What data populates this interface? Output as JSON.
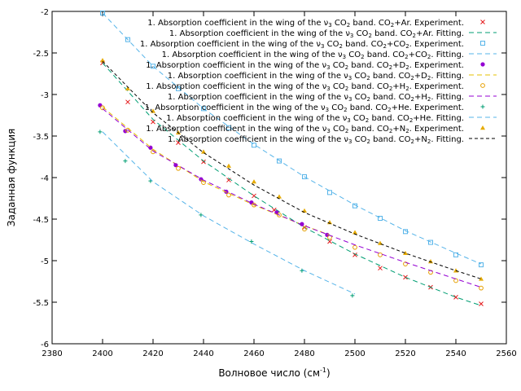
{
  "chart_data": {
    "type": "scatter",
    "xlabel": "Волновое число (см",
    "xlabel_sup": "-1",
    "xlabel_close": ")",
    "ylabel": "Заданная функция",
    "xlim": [
      2380,
      2560
    ],
    "ylim": [
      -6,
      -2
    ],
    "xticks": [
      2380,
      2400,
      2420,
      2440,
      2460,
      2480,
      2500,
      2520,
      2540,
      2560
    ],
    "yticks": [
      -6,
      -5.5,
      -5,
      -4.5,
      -4,
      -3.5,
      -3,
      -2.5,
      -2
    ],
    "grid": false,
    "legend_position": "top-right",
    "legend_prefix": "1. Absorption coefficient in the wing of the ν",
    "legend_sub": "3",
    "legend_mid": " CO",
    "legend_sub2": "2",
    "series": [
      {
        "name": "1. Absorption coefficient in the wing of the v3 CO2 band. CO2+Ar. Experiment.",
        "tail": " band. CO",
        "tailsub": "2",
        "tail2": "+Ar. Experiment.",
        "kind": "points",
        "marker": "x",
        "color": "#e41a1c",
        "x": [
          2400,
          2410,
          2420,
          2430,
          2440,
          2450,
          2460,
          2468,
          2480,
          2490,
          2500,
          2510,
          2520,
          2530,
          2540,
          2550
        ],
        "y": [
          -2.62,
          -3.09,
          -3.33,
          -3.58,
          -3.81,
          -4.03,
          -4.22,
          -4.39,
          -4.6,
          -4.77,
          -4.93,
          -5.09,
          -5.2,
          -5.32,
          -5.44,
          -5.52
        ]
      },
      {
        "name": "1. Absorption coefficient in the wing of the v3 CO2 band. CO2+Ar. Fitting.",
        "tail": " band. CO",
        "tailsub": "2",
        "tail2": "+Ar. Fitting.",
        "kind": "line",
        "dash": "6,4",
        "color": "#009e73",
        "x": [
          2400,
          2420,
          2440,
          2460,
          2480,
          2500,
          2520,
          2540,
          2550
        ],
        "y": [
          -2.62,
          -3.3,
          -3.8,
          -4.22,
          -4.6,
          -4.92,
          -5.2,
          -5.44,
          -5.54
        ]
      },
      {
        "name": "1. Absorption coefficient in the wing of the v3 CO2 band. CO2+CO2. Experiment.",
        "tail": " band. CO",
        "tailsub": "2",
        "tail2": "+CO",
        "tailsub2": "2",
        "tail3": ". Experiment.",
        "kind": "points",
        "marker": "square",
        "color": "#56b4e9",
        "x": [
          2400,
          2410,
          2420,
          2430,
          2440,
          2450,
          2460,
          2470,
          2480,
          2490,
          2500,
          2510,
          2520,
          2530,
          2540,
          2550
        ],
        "y": [
          -2.02,
          -2.34,
          -2.66,
          -2.93,
          -3.17,
          -3.4,
          -3.61,
          -3.8,
          -3.99,
          -4.18,
          -4.34,
          -4.49,
          -4.65,
          -4.78,
          -4.93,
          -5.05
        ]
      },
      {
        "name": "1. Absorption coefficient in the wing of the v3 CO2 band. CO2+CO2. Fitting.",
        "tail": " band. CO",
        "tailsub": "2",
        "tail2": "+CO",
        "tailsub2": "2",
        "tail3": ". Fitting.",
        "kind": "line",
        "dash": "6,4",
        "color": "#56b4e9",
        "x": [
          2400,
          2420,
          2440,
          2460,
          2480,
          2500,
          2520,
          2540,
          2550
        ],
        "y": [
          -2.02,
          -2.66,
          -3.17,
          -3.6,
          -3.99,
          -4.33,
          -4.64,
          -4.91,
          -5.04
        ]
      },
      {
        "name": "1. Absorption coefficient in the wing of the v3 CO2 band. CO2+D2. Experiment.",
        "tail": " band. CO",
        "tailsub": "2",
        "tail2": "+D",
        "tailsub2": "2",
        "tail3": ". Experiment.",
        "kind": "points",
        "marker": "circle",
        "color": "#9400d3",
        "x": [
          2399,
          2409,
          2419,
          2429,
          2439,
          2449,
          2459,
          2469,
          2479,
          2489
        ],
        "y": [
          -3.13,
          -3.44,
          -3.64,
          -3.85,
          -4.02,
          -4.17,
          -4.3,
          -4.42,
          -4.56,
          -4.69
        ]
      },
      {
        "name": "1. Absorption coefficient in the wing of the v3 CO2 band. CO2+D2. Fitting.",
        "tail": " band. CO",
        "tailsub": "2",
        "tail2": "+D",
        "tailsub2": "2",
        "tail3": ". Fitting.",
        "kind": "line",
        "dash": "6,4",
        "color": "#e6c200",
        "x": [
          2400,
          2420,
          2440,
          2460,
          2480,
          2490
        ],
        "y": [
          -3.15,
          -3.66,
          -4.05,
          -4.33,
          -4.58,
          -4.69
        ]
      },
      {
        "name": "1. Absorption coefficient in the wing of the v3 CO2 band. CO2+H2. Experiment.",
        "tail": " band. CO",
        "tailsub": "2",
        "tail2": "+H",
        "tailsub2": "2",
        "tail3": ". Experiment.",
        "kind": "points",
        "marker": "circle-open",
        "color": "#e69f00",
        "x": [
          2400,
          2410,
          2420,
          2430,
          2440,
          2450,
          2460,
          2470,
          2480,
          2490,
          2500,
          2510,
          2520,
          2530,
          2540,
          2550
        ],
        "y": [
          -3.16,
          -3.43,
          -3.69,
          -3.89,
          -4.06,
          -4.21,
          -4.33,
          -4.45,
          -4.62,
          -4.72,
          -4.84,
          -4.93,
          -5.04,
          -5.14,
          -5.24,
          -5.33
        ]
      },
      {
        "name": "1. Absorption coefficient in the wing of the v3 CO2 band. CO2+H2. Fitting.",
        "tail": " band. CO",
        "tailsub": "2",
        "tail2": "+H",
        "tailsub2": "2",
        "tail3": ". Fitting.",
        "kind": "line",
        "dash": "6,4",
        "color": "#9400d3",
        "x": [
          2400,
          2420,
          2440,
          2460,
          2480,
          2500,
          2520,
          2540,
          2550
        ],
        "y": [
          -3.17,
          -3.68,
          -4.03,
          -4.32,
          -4.58,
          -4.81,
          -5.02,
          -5.22,
          -5.32
        ]
      },
      {
        "name": "1. Absorption coefficient in the wing of the v3 CO2 band. CO2+He. Experiment.",
        "tail": " band. CO",
        "tailsub": "2",
        "tail2": "+He. Experiment.",
        "kind": "points",
        "marker": "plus",
        "color": "#009e73",
        "x": [
          2399,
          2409,
          2419,
          2439,
          2459,
          2479,
          2499
        ],
        "y": [
          -3.45,
          -3.8,
          -4.04,
          -4.45,
          -4.77,
          -5.12,
          -5.42
        ]
      },
      {
        "name": "1. Absorption coefficient in the wing of the v3 CO2 band. CO2+He. Fitting.",
        "tail": " band. CO",
        "tailsub": "2",
        "tail2": "+He. Fitting.",
        "kind": "line",
        "dash": "6,4",
        "color": "#56b4e9",
        "x": [
          2400,
          2420,
          2440,
          2460,
          2480,
          2500
        ],
        "y": [
          -3.45,
          -4.05,
          -4.46,
          -4.8,
          -5.12,
          -5.4
        ]
      },
      {
        "name": "1. Absorption coefficient in the wing of the v3 CO2 band. CO2+N2. Experiment.",
        "tail": " band. CO",
        "tailsub": "2",
        "tail2": "+N",
        "tailsub2": "2",
        "tail3": ". Experiment.",
        "kind": "points",
        "marker": "triangle",
        "color": "#e6ab02",
        "x": [
          2400,
          2410,
          2420,
          2430,
          2440,
          2450,
          2460,
          2470,
          2480,
          2490,
          2500,
          2510,
          2520,
          2530,
          2540,
          2550
        ],
        "y": [
          -2.59,
          -2.93,
          -3.2,
          -3.46,
          -3.69,
          -3.86,
          -4.05,
          -4.23,
          -4.4,
          -4.54,
          -4.66,
          -4.79,
          -4.91,
          -5.01,
          -5.12,
          -5.22
        ]
      },
      {
        "name": "1. Absorption coefficient in the wing of the v3 CO2 band. CO2+N2. Fitting.",
        "tail": " band. CO",
        "tailsub": "2",
        "tail2": "+N",
        "tailsub2": "2",
        "tail3": ". Fitting.",
        "kind": "line",
        "dash": "4,3",
        "color": "#000000",
        "x": [
          2400,
          2420,
          2440,
          2460,
          2480,
          2500,
          2520,
          2540,
          2550
        ],
        "y": [
          -2.6,
          -3.22,
          -3.7,
          -4.09,
          -4.42,
          -4.68,
          -4.91,
          -5.12,
          -5.22
        ]
      }
    ]
  }
}
